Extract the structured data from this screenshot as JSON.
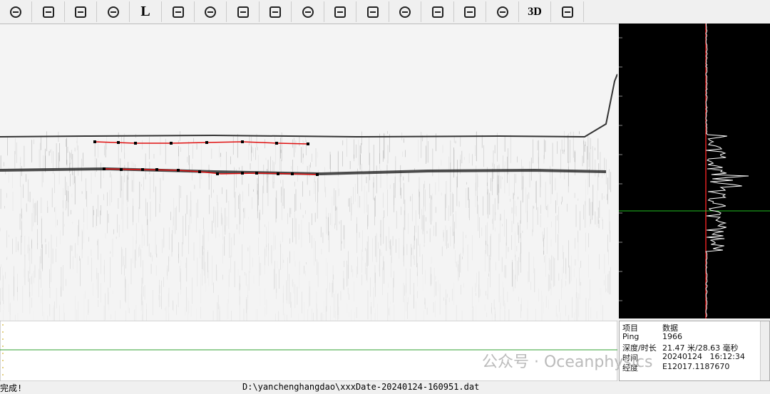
{
  "toolbar": {
    "text_buttons": [
      "L",
      "3D"
    ]
  },
  "info_table": {
    "header": [
      "项目",
      "数据"
    ],
    "rows": [
      [
        "Ping",
        "1966"
      ],
      [
        "深度/时长",
        "21.47 米/28.63 毫秒"
      ],
      [
        "时间",
        "20240124   16:12:34"
      ],
      [
        "经度",
        "E12017.1187670"
      ]
    ]
  },
  "status": {
    "message": "完成!",
    "file": "D:\\yanchenghangdao\\xxxDate-20240124-160951.dat"
  },
  "watermark": "公众号 · Oceanphysics"
}
